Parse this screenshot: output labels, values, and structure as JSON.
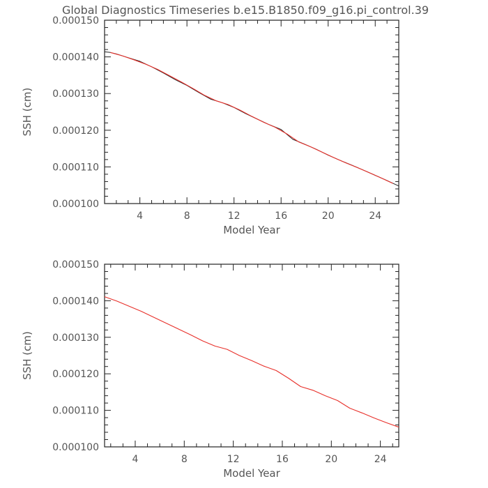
{
  "title": "Global Diagnostics Timeseries b.e15.B1850.f09_g16.pi_control.39",
  "colors": {
    "red": "#e8302a",
    "black": "#222222",
    "text": "#555555"
  },
  "chart_data": [
    {
      "type": "line",
      "xlabel": "Model Year",
      "ylabel": "SSH (cm)",
      "xlim": [
        1,
        26
      ],
      "ylim": [
        0.0001,
        0.00015
      ],
      "xticks": [
        4,
        8,
        12,
        16,
        20,
        24
      ],
      "yticks": [
        "0.000100",
        "0.000110",
        "0.000120",
        "0.000130",
        "0.000140",
        "0.000150"
      ],
      "series": [
        {
          "style": "black-monthly",
          "x": [
            1.0,
            1.5,
            2.0,
            3.0,
            4.0,
            5.0,
            6.0,
            7.0,
            8.0,
            9.0,
            10.0,
            11.0,
            12.0,
            13.0,
            14.0,
            15.0,
            16.0,
            17.0,
            18.0,
            19.0,
            20.0,
            21.0,
            22.0,
            23.0,
            24.0,
            25.0,
            26.0
          ],
          "values": [
            0.0001414,
            0.0001412,
            0.0001408,
            0.0001398,
            0.0001388,
            0.0001373,
            0.0001356,
            0.0001338,
            0.0001322,
            0.0001303,
            0.0001285,
            0.0001275,
            0.0001262,
            0.0001245,
            0.000123,
            0.0001215,
            0.0001202,
            0.0001175,
            0.0001162,
            0.0001148,
            0.0001132,
            0.0001118,
            0.0001105,
            0.0001091,
            0.0001077,
            0.0001063,
            0.0001048
          ]
        },
        {
          "style": "red-annual",
          "x": [
            1.5,
            2.5,
            3.5,
            4.5,
            5.5,
            6.5,
            7.5,
            8.5,
            9.5,
            10.5,
            11.5,
            12.5,
            13.5,
            14.5,
            15.5,
            16.5,
            17.5,
            18.5,
            19.5,
            20.5,
            21.5,
            22.5,
            23.5,
            24.5,
            25.5
          ],
          "values": [
            0.0001412,
            0.0001403,
            0.0001392,
            0.000138,
            0.0001366,
            0.0001349,
            0.0001332,
            0.0001314,
            0.0001295,
            0.000128,
            0.000127,
            0.0001255,
            0.0001238,
            0.0001222,
            0.0001208,
            0.000119,
            0.0001168,
            0.0001155,
            0.000114,
            0.0001125,
            0.0001111,
            0.0001098,
            0.0001084,
            0.000107,
            0.0001055
          ]
        }
      ]
    },
    {
      "type": "line",
      "xlabel": "Model Year",
      "ylabel": "SSH (cm)",
      "xlim": [
        1.5,
        25.5
      ],
      "ylim": [
        0.0001,
        0.00015
      ],
      "xticks": [
        4,
        8,
        12,
        16,
        20,
        24
      ],
      "yticks": [
        "0.000100",
        "0.000110",
        "0.000120",
        "0.000130",
        "0.000140",
        "0.000150"
      ],
      "series": [
        {
          "style": "red-annual",
          "x": [
            1.5,
            2.5,
            3.5,
            4.5,
            5.5,
            6.5,
            7.5,
            8.5,
            9.5,
            10.5,
            11.5,
            12.5,
            13.5,
            14.5,
            15.5,
            16.5,
            17.5,
            18.5,
            19.5,
            20.5,
            21.5,
            22.5,
            23.5,
            24.5,
            25.5
          ],
          "values": [
            0.0001411,
            0.0001399,
            0.0001385,
            0.0001371,
            0.0001355,
            0.0001339,
            0.0001323,
            0.0001307,
            0.000129,
            0.0001276,
            0.0001267,
            0.000125,
            0.0001236,
            0.0001221,
            0.0001209,
            0.0001188,
            0.0001165,
            0.0001155,
            0.000114,
            0.0001127,
            0.0001106,
            0.0001093,
            0.0001079,
            0.0001066,
            0.0001054
          ]
        }
      ]
    }
  ]
}
